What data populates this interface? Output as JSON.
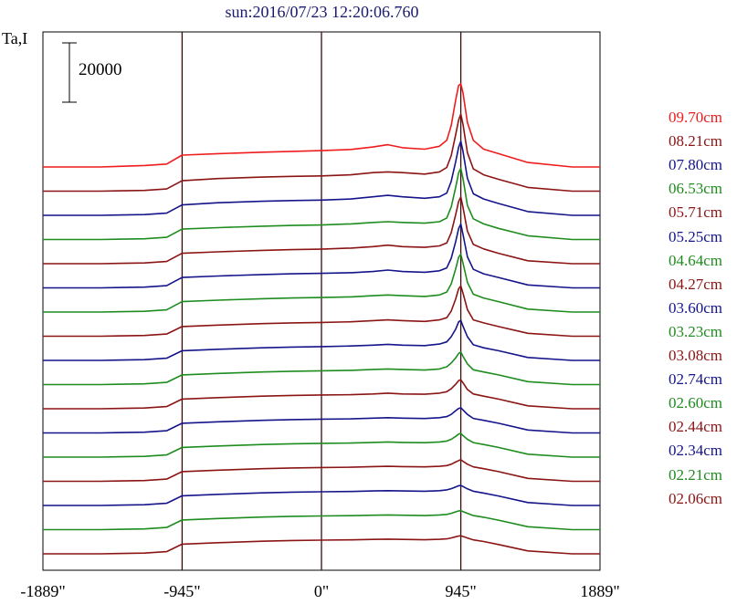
{
  "chart_data": {
    "type": "line",
    "title": "sun:2016/07/23 12:20:06.760",
    "ylabel": "Ta,I",
    "scale_bar_label": "20000",
    "scale_bar_value": 20000,
    "xlim": [
      -1889,
      1889
    ],
    "x_ticks": [
      {
        "value": -1889,
        "label": "-1889\""
      },
      {
        "value": -945,
        "label": "-945\""
      },
      {
        "value": 0,
        "label": "0\""
      },
      {
        "value": 945,
        "label": "945\""
      },
      {
        "value": 1889,
        "label": "1889\""
      }
    ],
    "vertical_lines": [
      -945,
      0,
      945
    ],
    "offset_step": 13000,
    "x": [
      -1889,
      -1500,
      -1200,
      -1050,
      -945,
      -700,
      -400,
      -200,
      0,
      200,
      350,
      450,
      550,
      700,
      800,
      850,
      880,
      910,
      930,
      945,
      960,
      990,
      1030,
      1100,
      1200,
      1400,
      1700,
      1889
    ],
    "series": [
      {
        "name": "09.70cm",
        "color": "#ee1c1c",
        "values": [
          0,
          0,
          1000,
          2000,
          8000,
          9000,
          10000,
          10500,
          11000,
          11800,
          13500,
          15000,
          13000,
          12000,
          14000,
          18000,
          28000,
          45000,
          55000,
          56000,
          50000,
          30000,
          18000,
          12000,
          9000,
          3000,
          0,
          0
        ]
      },
      {
        "name": "08.21cm",
        "color": "#8b1414",
        "values": [
          0,
          0,
          500,
          1500,
          7000,
          8500,
          9500,
          10000,
          10300,
          11000,
          12500,
          13000,
          12500,
          11500,
          13000,
          16000,
          24000,
          38000,
          48000,
          52000,
          45000,
          26000,
          15000,
          11000,
          8000,
          2500,
          0,
          0
        ]
      },
      {
        "name": "07.80cm",
        "color": "#14148b",
        "values": [
          0,
          0,
          500,
          1500,
          7000,
          8500,
          9500,
          10000,
          10300,
          11000,
          12500,
          13500,
          12500,
          11500,
          12500,
          15000,
          23000,
          36000,
          46000,
          50000,
          43000,
          25000,
          14500,
          11000,
          8000,
          2500,
          0,
          0
        ]
      },
      {
        "name": "06.53cm",
        "color": "#1e8c1e",
        "values": [
          0,
          0,
          500,
          1500,
          7000,
          8000,
          9000,
          9500,
          9800,
          10500,
          11500,
          12000,
          11500,
          11000,
          12000,
          14500,
          22000,
          35000,
          45000,
          48000,
          41000,
          23000,
          14000,
          10500,
          7500,
          2500,
          0,
          0
        ]
      },
      {
        "name": "05.71cm",
        "color": "#8b1414",
        "values": [
          0,
          0,
          500,
          1500,
          7000,
          8000,
          9000,
          9500,
          9800,
          10500,
          11500,
          12500,
          11500,
          11000,
          12000,
          14000,
          21000,
          33000,
          42000,
          45000,
          38000,
          22000,
          13000,
          10000,
          7000,
          2000,
          0,
          0
        ]
      },
      {
        "name": "05.25cm",
        "color": "#14148b",
        "values": [
          0,
          0,
          500,
          1500,
          7000,
          8000,
          9000,
          9500,
          9800,
          10200,
          11000,
          12000,
          11000,
          10500,
          11500,
          13500,
          20000,
          31000,
          40000,
          43000,
          36000,
          21000,
          12500,
          9500,
          7000,
          2000,
          0,
          0
        ]
      },
      {
        "name": "04.64cm",
        "color": "#1e8c1e",
        "values": [
          0,
          0,
          500,
          1500,
          7000,
          8000,
          9000,
          9500,
          9800,
          10200,
          11000,
          11500,
          11000,
          10500,
          11500,
          13500,
          19000,
          29000,
          37000,
          39000,
          33000,
          20000,
          12000,
          9500,
          7000,
          2000,
          0,
          0
        ]
      },
      {
        "name": "04.27cm",
        "color": "#8b1414",
        "values": [
          0,
          0,
          500,
          1500,
          6500,
          7500,
          8500,
          9000,
          9300,
          9700,
          10500,
          11000,
          10500,
          10000,
          11000,
          12500,
          17000,
          25000,
          32000,
          34000,
          29000,
          18000,
          11000,
          9000,
          6500,
          2000,
          0,
          0
        ]
      },
      {
        "name": "03.60cm",
        "color": "#14148b",
        "values": [
          0,
          0,
          500,
          1500,
          6500,
          7500,
          8500,
          9000,
          9300,
          9700,
          10300,
          10800,
          10300,
          10000,
          11000,
          12500,
          16000,
          21000,
          26000,
          27000,
          23000,
          16000,
          10500,
          8500,
          6500,
          2000,
          0,
          0
        ]
      },
      {
        "name": "03.23cm",
        "color": "#1e8c1e",
        "values": [
          0,
          0,
          500,
          1500,
          6500,
          7500,
          8500,
          9000,
          9300,
          9600,
          10200,
          10500,
          10200,
          9800,
          10500,
          12000,
          14500,
          18000,
          21000,
          22000,
          19000,
          14000,
          10000,
          8500,
          6500,
          2000,
          0,
          0
        ]
      },
      {
        "name": "03.08cm",
        "color": "#8b1414",
        "values": [
          0,
          0,
          500,
          1500,
          6500,
          7500,
          8500,
          9000,
          9300,
          9500,
          10000,
          10500,
          10000,
          9800,
          10500,
          11500,
          13500,
          16500,
          19000,
          19500,
          17500,
          13000,
          10000,
          8500,
          6500,
          2000,
          0,
          0
        ]
      },
      {
        "name": "02.74cm",
        "color": "#14148b",
        "values": [
          0,
          0,
          500,
          1500,
          6500,
          7500,
          8500,
          9000,
          9300,
          9500,
          10000,
          10300,
          10000,
          9700,
          10300,
          11000,
          12500,
          15000,
          16500,
          17000,
          15500,
          12500,
          9800,
          8500,
          6500,
          2000,
          0,
          0
        ]
      },
      {
        "name": "02.60cm",
        "color": "#1e8c1e",
        "values": [
          0,
          0,
          500,
          1500,
          6500,
          7500,
          8500,
          9000,
          9300,
          9500,
          9900,
          10200,
          9900,
          9700,
          10200,
          10800,
          12000,
          14000,
          15500,
          16000,
          14500,
          12000,
          9800,
          8500,
          6500,
          2000,
          0,
          0
        ]
      },
      {
        "name": "02.44cm",
        "color": "#8b1414",
        "values": [
          0,
          0,
          500,
          1500,
          6500,
          7500,
          8500,
          9000,
          9300,
          9500,
          9900,
          10100,
          9900,
          9700,
          10100,
          10600,
          11500,
          13000,
          14000,
          14500,
          13500,
          11500,
          9700,
          8500,
          6500,
          2000,
          0,
          0
        ]
      },
      {
        "name": "02.34cm",
        "color": "#14148b",
        "values": [
          0,
          0,
          500,
          1500,
          6500,
          7500,
          8500,
          9000,
          9200,
          9400,
          9800,
          10000,
          9800,
          9600,
          10000,
          10500,
          11300,
          12500,
          13300,
          13500,
          12800,
          11200,
          9600,
          8400,
          6400,
          2000,
          0,
          0
        ]
      },
      {
        "name": "02.21cm",
        "color": "#1e8c1e",
        "values": [
          0,
          0,
          500,
          1500,
          6500,
          7500,
          8500,
          9000,
          9200,
          9400,
          9700,
          9900,
          9700,
          9500,
          9900,
          10300,
          11000,
          12000,
          12600,
          12800,
          12200,
          11000,
          9500,
          8400,
          6400,
          2000,
          0,
          0
        ]
      },
      {
        "name": "02.06cm",
        "color": "#8b1414",
        "values": [
          0,
          0,
          500,
          1500,
          6500,
          7500,
          8500,
          9000,
          9200,
          9400,
          9700,
          9900,
          9700,
          9500,
          9800,
          10100,
          10700,
          11500,
          12000,
          12200,
          11700,
          10700,
          9400,
          8300,
          6300,
          2000,
          0,
          0
        ]
      }
    ]
  }
}
